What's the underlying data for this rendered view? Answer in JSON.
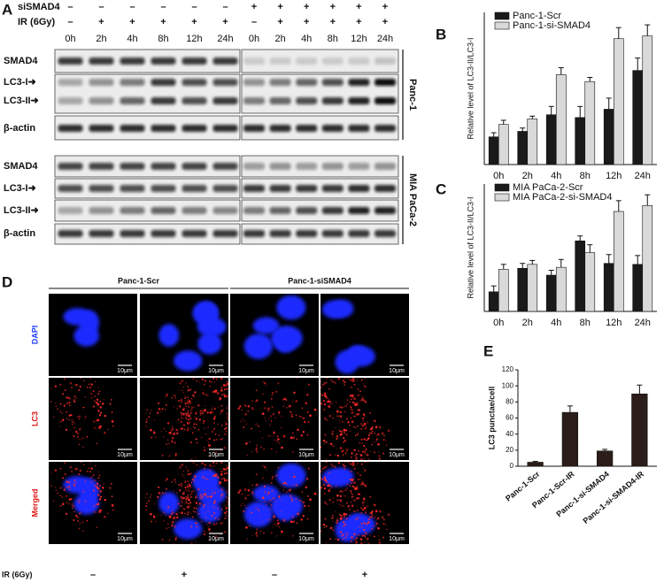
{
  "blot": {
    "panel_label": "A",
    "treatments": [
      {
        "label": "siSMAD4",
        "signs": [
          "–",
          "–",
          "–",
          "–",
          "–",
          "–",
          "+",
          "+",
          "+",
          "+",
          "+",
          "+"
        ]
      },
      {
        "label": "IR (6Gy)",
        "signs": [
          "–",
          "+",
          "+",
          "+",
          "+",
          "+",
          "–",
          "+",
          "+",
          "+",
          "+",
          "+"
        ]
      }
    ],
    "times": [
      "0h",
      "2h",
      "4h",
      "8h",
      "12h",
      "24h",
      "0h",
      "2h",
      "4h",
      "8h",
      "12h",
      "24h"
    ],
    "cell_lines": [
      {
        "name": "Panc-1",
        "bands": [
          "SMAD4",
          "LC3-I➜",
          "LC3-II➜",
          "β-actin"
        ]
      },
      {
        "name": "MIA PaCa-2",
        "bands": [
          "SMAD4",
          "LC3-I➜",
          "LC3-II➜",
          "β-actin"
        ]
      }
    ]
  },
  "microscopy": {
    "panel_label": "D",
    "groups": [
      "Panc-1-Scr",
      "Panc-1-siSMAD4"
    ],
    "rows": [
      "DAPI",
      "LC3",
      "Merged"
    ],
    "scale_bar": "10μm",
    "ir_label": "IR (6Gy)",
    "ir_signs": [
      "–",
      "+",
      "–",
      "+"
    ]
  },
  "chart_data": [
    {
      "type": "bar",
      "panel_label": "B",
      "y_label": "Relative level of LC3-II/LC3-I",
      "categories": [
        "0h",
        "2h",
        "4h",
        "8h",
        "12h",
        "24h"
      ],
      "ylim": [
        0,
        5.5
      ],
      "series": [
        {
          "name": "Panc-1-Scr",
          "color": "#1a1a1a",
          "values": [
            1.0,
            1.2,
            1.8,
            1.7,
            2.0,
            3.4
          ],
          "errors": [
            0.15,
            0.12,
            0.3,
            0.4,
            0.4,
            0.45
          ]
        },
        {
          "name": "Panc-1-si-SMAD4",
          "color": "#d9d9d9",
          "values": [
            1.45,
            1.65,
            3.25,
            3.0,
            4.55,
            4.65
          ],
          "errors": [
            0.15,
            0.1,
            0.25,
            0.15,
            0.4,
            0.4
          ]
        }
      ]
    },
    {
      "type": "bar",
      "panel_label": "C",
      "y_label": "Relative level of LC3-II/LC3-I",
      "categories": [
        "0h",
        "2h",
        "4h",
        "8h",
        "12h",
        "24h"
      ],
      "ylim": [
        0,
        6.5
      ],
      "series": [
        {
          "name": "MIA PaCa-2-Scr",
          "color": "#1a1a1a",
          "values": [
            1.0,
            2.2,
            1.85,
            3.6,
            2.45,
            2.4
          ],
          "errors": [
            0.3,
            0.25,
            0.25,
            0.25,
            0.45,
            0.45
          ]
        },
        {
          "name": "MIA PaCa-2-si-SMAD4",
          "color": "#d9d9d9",
          "values": [
            2.15,
            2.4,
            2.25,
            3.0,
            5.1,
            5.4
          ],
          "errors": [
            0.25,
            0.2,
            0.4,
            0.4,
            0.55,
            0.55
          ]
        }
      ]
    },
    {
      "type": "bar",
      "panel_label": "E",
      "y_label": "LC3 punctae/cell",
      "categories": [
        "Panc-1-Scr",
        "Panc-1-Scr-IR",
        "Panc-1-si-SMAD4",
        "Panc-1-si-SMAD4-IR"
      ],
      "values": [
        5,
        67,
        19,
        90
      ],
      "errors": [
        1,
        8,
        2,
        11
      ],
      "color": "#2b1d19",
      "ylim": [
        0,
        120
      ],
      "yticks": [
        0,
        20,
        40,
        60,
        80,
        100,
        120
      ]
    }
  ]
}
